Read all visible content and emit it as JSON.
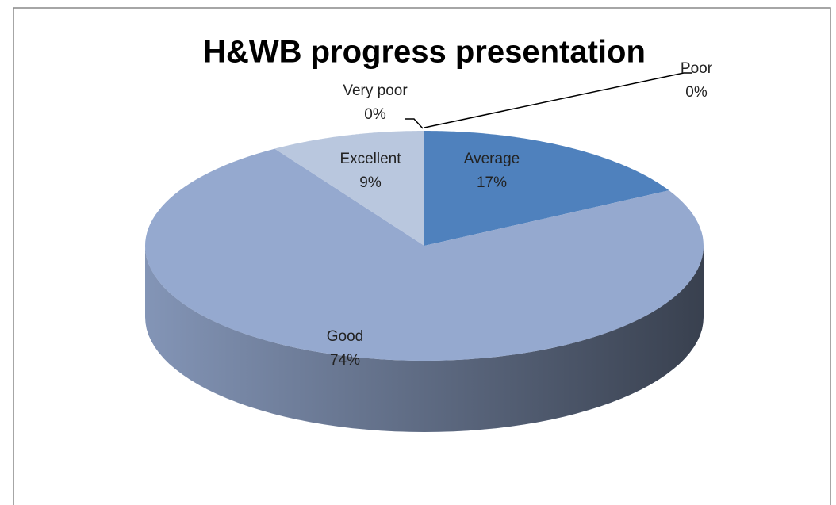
{
  "chart_data": {
    "type": "pie",
    "title": "H&WB progress presentation",
    "categories": [
      "Poor",
      "Average",
      "Good",
      "Excellent",
      "Very poor"
    ],
    "values": [
      0,
      17,
      74,
      9,
      0
    ],
    "value_labels": [
      "0%",
      "17%",
      "74%",
      "9%",
      "0%"
    ],
    "colors": [
      "#4f81bd",
      "#4f81bd",
      "#95a9cf",
      "#b9c7de",
      "#b9c7de"
    ]
  }
}
